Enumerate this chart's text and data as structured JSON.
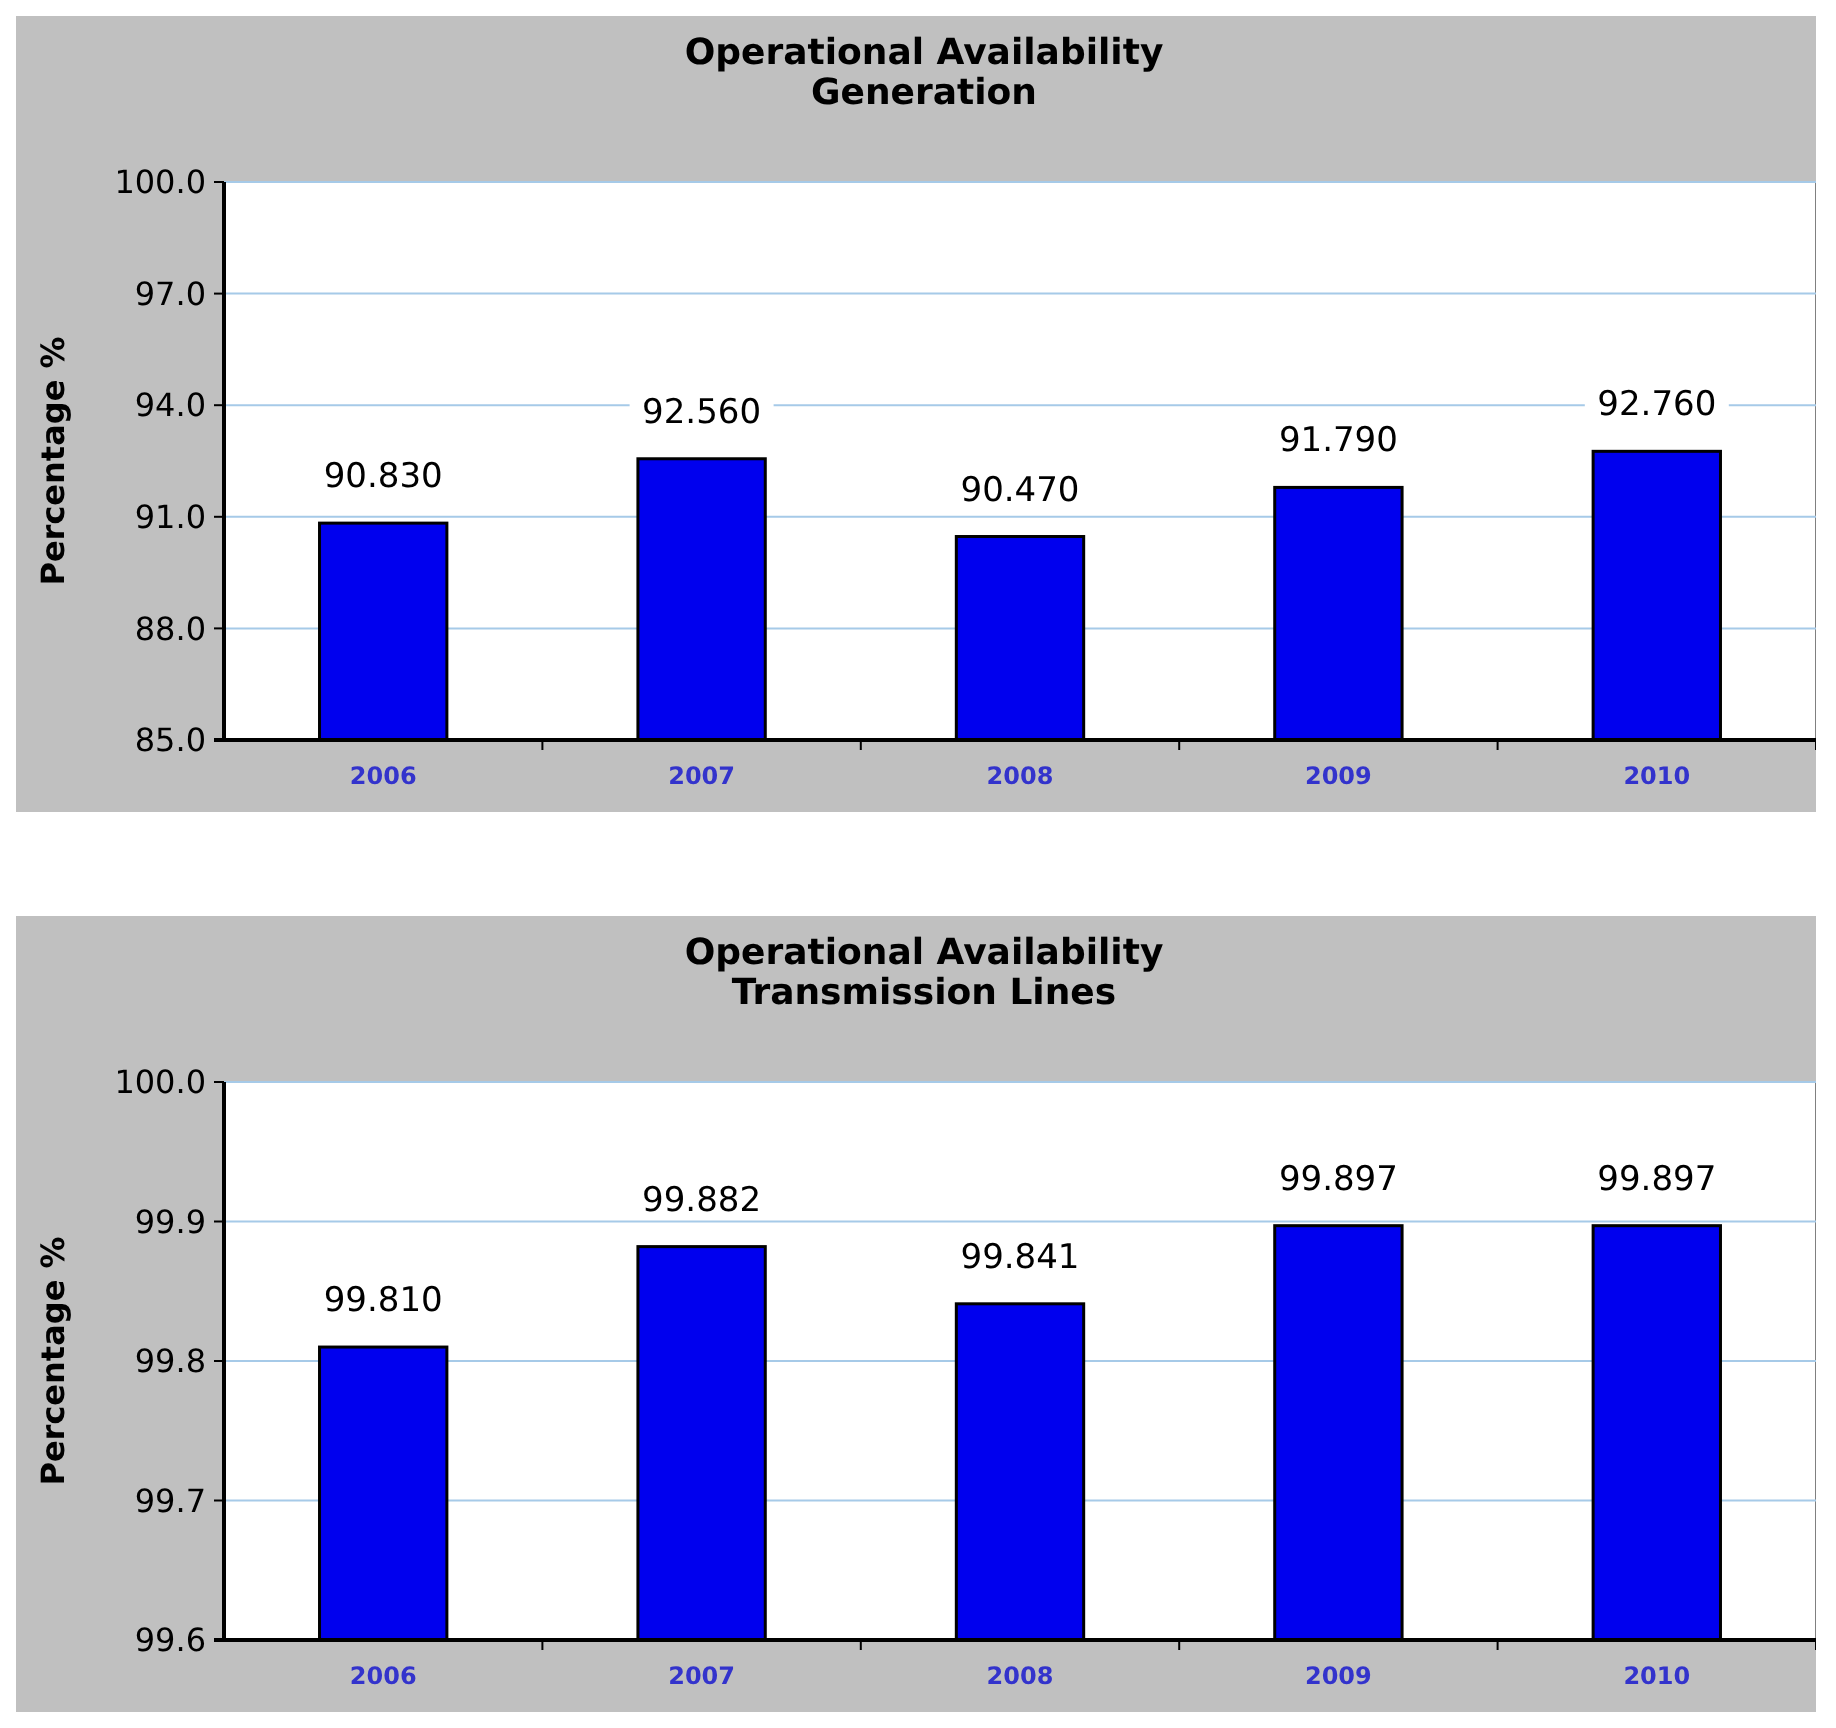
{
  "chart_data": [
    {
      "type": "bar",
      "title": "Operational Availability\nGeneration",
      "ylabel": "Percentage %",
      "categories": [
        "2006",
        "2007",
        "2008",
        "2009",
        "2010"
      ],
      "values": [
        90.83,
        92.56,
        90.47,
        91.79,
        92.76
      ],
      "value_labels": [
        "90.830",
        "92.560",
        "90.470",
        "91.790",
        "92.760"
      ],
      "color": "#0000ee",
      "ylim": [
        85,
        100
      ],
      "yticks": [
        {
          "value": 85,
          "label": "85.0"
        },
        {
          "value": 88,
          "label": "88.0"
        },
        {
          "value": 91,
          "label": "91.0"
        },
        {
          "value": 94,
          "label": "94.0"
        },
        {
          "value": 97,
          "label": "97.0"
        },
        {
          "value": 100,
          "label": "100.0"
        }
      ],
      "grid": "y"
    },
    {
      "type": "bar",
      "title": "Operational Availability\nTransmission Lines",
      "ylabel": "Percentage %",
      "categories": [
        "2006",
        "2007",
        "2008",
        "2009",
        "2010"
      ],
      "values": [
        99.81,
        99.882,
        99.841,
        99.897,
        99.897
      ],
      "value_labels": [
        "99.810",
        "99.882",
        "99.841",
        "99.897",
        "99.897"
      ],
      "color": "#0000ee",
      "ylim": [
        99.6,
        100
      ],
      "yticks": [
        {
          "value": 99.6,
          "label": "99.6"
        },
        {
          "value": 99.7,
          "label": "99.7"
        },
        {
          "value": 99.8,
          "label": "99.8"
        },
        {
          "value": 99.9,
          "label": "99.9"
        },
        {
          "value": 100,
          "label": "100.0"
        }
      ],
      "grid": "y"
    }
  ]
}
